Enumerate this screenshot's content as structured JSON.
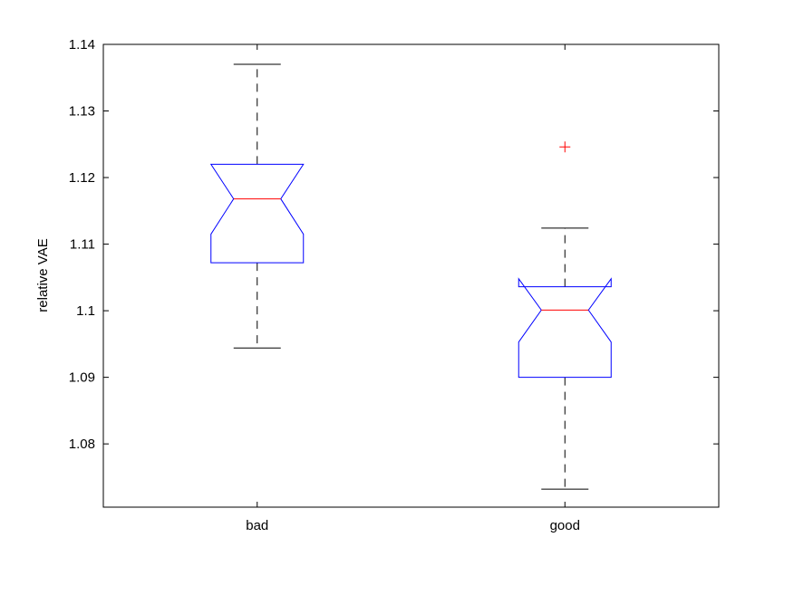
{
  "chart_data": {
    "type": "boxplot",
    "title": "",
    "xlabel": "",
    "ylabel": "relative VAE",
    "ylim": [
      1.0705,
      1.14
    ],
    "yticks": [
      1.08,
      1.09,
      1.1,
      1.11,
      1.12,
      1.13,
      1.14
    ],
    "ytick_labels": [
      "1.08",
      "1.09",
      "1.1",
      "1.11",
      "1.12",
      "1.13",
      "1.14"
    ],
    "categories": [
      "bad",
      "good"
    ],
    "notched": true,
    "grid": false,
    "colors": {
      "box": "#0000ff",
      "median": "#ff0000",
      "whisker": "#000000",
      "outlier": "#ff0000"
    },
    "boxes": [
      {
        "category": "bad",
        "whisker_low": 1.0944,
        "q1": 1.1072,
        "notch_low": 1.1115,
        "median": 1.1168,
        "notch_high": 1.122,
        "q3": 1.122,
        "whisker_high": 1.137,
        "outliers": []
      },
      {
        "category": "good",
        "whisker_low": 1.0732,
        "q1": 1.09,
        "notch_low": 1.0953,
        "median": 1.1001,
        "notch_high": 1.1048,
        "q3": 1.1036,
        "whisker_high": 1.1124,
        "outliers": [
          1.1246
        ]
      }
    ]
  }
}
